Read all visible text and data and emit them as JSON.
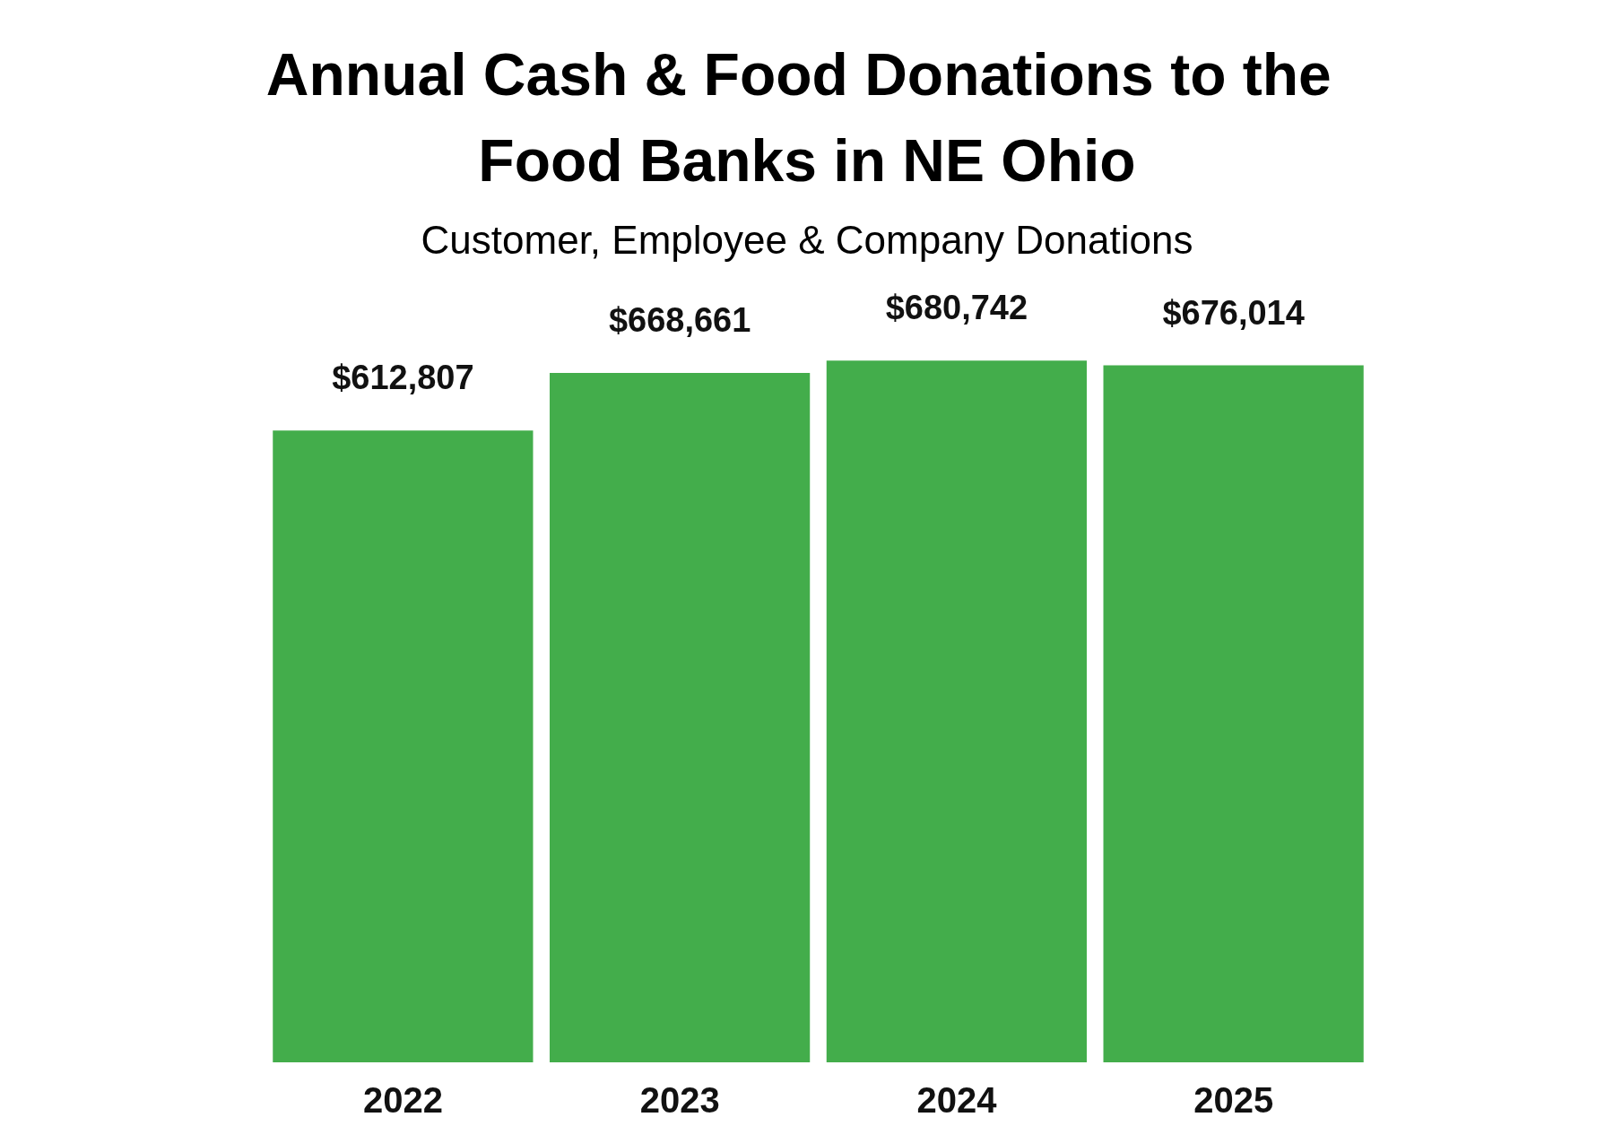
{
  "chart_data": {
    "type": "bar",
    "title": "Annual Cash & Food Donations to the Food Banks in NE Ohio",
    "subtitle": "Customer, Employee & Company Donations",
    "categories": [
      "2022",
      "2023",
      "2024",
      "2025"
    ],
    "values": [
      612807,
      668661,
      680742,
      676014
    ],
    "value_labels": [
      "$612,807",
      "$668,661",
      "$680,742",
      "$676,014"
    ],
    "color": "#43ad4b"
  }
}
